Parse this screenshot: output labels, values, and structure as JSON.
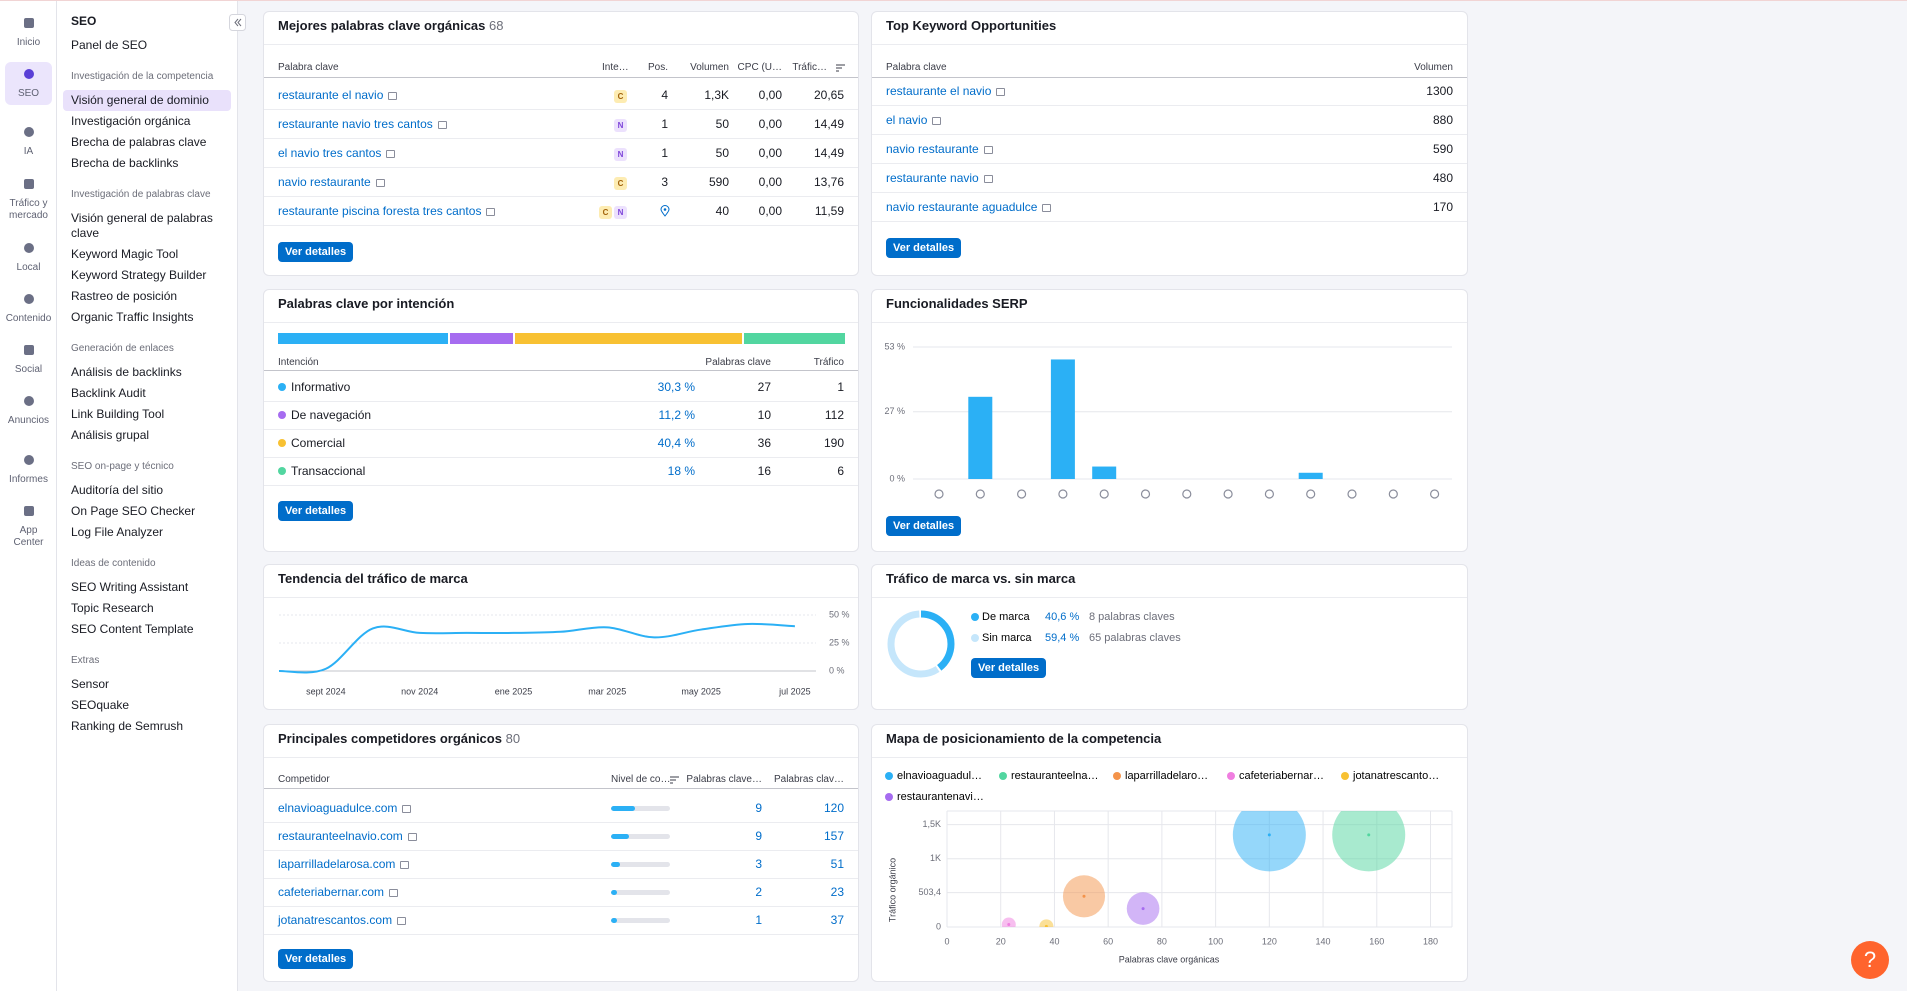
{
  "nav": {
    "items": [
      "Inicio",
      "SEO",
      "IA",
      "Tráfico y mercado",
      "Local",
      "Contenido",
      "Social",
      "Anuncios",
      "Informes",
      "App Center"
    ]
  },
  "sidebar": {
    "title": "SEO",
    "home": "Panel de SEO",
    "sections": [
      {
        "heading": "Investigación de la competencia",
        "items": [
          "Visión general de dominio",
          "Investigación orgánica",
          "Brecha de palabras clave",
          "Brecha de backlinks"
        ]
      },
      {
        "heading": "Investigación de palabras clave",
        "items": [
          "Visión general de palabras clave",
          "Keyword Magic Tool",
          "Keyword Strategy Builder",
          "Rastreo de posición",
          "Organic Traffic Insights"
        ]
      },
      {
        "heading": "Generación de enlaces",
        "items": [
          "Análisis de backlinks",
          "Backlink Audit",
          "Link Building Tool",
          "Análisis grupal"
        ]
      },
      {
        "heading": "SEO on-page y técnico",
        "items": [
          "Auditoría del sitio",
          "On Page SEO Checker",
          "Log File Analyzer"
        ]
      },
      {
        "heading": "Ideas de contenido",
        "items": [
          "SEO Writing Assistant",
          "Topic Research",
          "SEO Content Template"
        ]
      },
      {
        "heading": "Extras",
        "items": [
          "Sensor",
          "SEOquake",
          "Ranking de Semrush"
        ]
      }
    ]
  },
  "top_keywords": {
    "title": "Mejores palabras clave orgánicas",
    "count": "68",
    "columns": [
      "Palabra clave",
      "Inte…",
      "Pos.",
      "Volumen",
      "CPC (U…",
      "Tráfic…"
    ],
    "rows": [
      {
        "keyword": "restaurante el navio",
        "intents": [
          "C"
        ],
        "position": "4",
        "volume": "1,3K",
        "cpc": "0,00",
        "traffic": "20,65"
      },
      {
        "keyword": "restaurante navio tres cantos",
        "intents": [
          "N"
        ],
        "position": "1",
        "volume": "50",
        "cpc": "0,00",
        "traffic": "14,49"
      },
      {
        "keyword": "el navio tres cantos",
        "intents": [
          "N"
        ],
        "position": "1",
        "volume": "50",
        "cpc": "0,00",
        "traffic": "14,49"
      },
      {
        "keyword": "navio restaurante",
        "intents": [
          "C"
        ],
        "position": "3",
        "volume": "590",
        "cpc": "0,00",
        "traffic": "13,76"
      },
      {
        "keyword": "restaurante piscina foresta tres cantos",
        "intents": [
          "C",
          "N"
        ],
        "volume": "40",
        "cpc": "0,00",
        "traffic": "11,59"
      }
    ],
    "button": "Ver detalles"
  },
  "opportunities": {
    "title": "Top Keyword Opportunities",
    "columns": [
      "Palabra clave",
      "Volumen"
    ],
    "rows": [
      {
        "keyword": "restaurante el navio",
        "volume": "1300"
      },
      {
        "keyword": "el navio",
        "volume": "880"
      },
      {
        "keyword": "navio restaurante",
        "volume": "590"
      },
      {
        "keyword": "restaurante navio",
        "volume": "480"
      },
      {
        "keyword": "navio restaurante aguadulce",
        "volume": "170"
      }
    ],
    "button": "Ver detalles"
  },
  "intent": {
    "title": "Palabras clave por intención",
    "columns": [
      "Intención",
      "Palabras clave",
      "Tráfico"
    ],
    "rows": [
      {
        "name": "Informativo",
        "color": "#2bb0f5",
        "share": 30.3,
        "share_label": "30,3 %",
        "keywords": "27",
        "traffic": "1"
      },
      {
        "name": "De navegación",
        "color": "#a66cf0",
        "share": 11.2,
        "share_label": "11,2 %",
        "keywords": "10",
        "traffic": "112"
      },
      {
        "name": "Comercial",
        "color": "#f8c132",
        "share": 40.4,
        "share_label": "40,4 %",
        "keywords": "36",
        "traffic": "190"
      },
      {
        "name": "Transaccional",
        "color": "#52d6a0",
        "share": 18,
        "share_label": "18 %",
        "keywords": "16",
        "traffic": "6"
      }
    ],
    "button": "Ver detalles"
  },
  "competitors": {
    "title": "Principales competidores orgánicos",
    "count": "80",
    "columns": [
      "Competidor",
      "Nivel de co…",
      "Palabras clave…",
      "Palabras clav…"
    ],
    "rows": [
      {
        "domain": "elnavioaguadulce.com",
        "level": 41,
        "common": "9",
        "keywords": "120"
      },
      {
        "domain": "restauranteelnavio.com",
        "level": 31,
        "common": "9",
        "keywords": "157"
      },
      {
        "domain": "laparrilladelarosa.com",
        "level": 16,
        "common": "3",
        "keywords": "51"
      },
      {
        "domain": "cafeteriabernar.com",
        "level": 10,
        "common": "2",
        "keywords": "23"
      },
      {
        "domain": "jotanatrescantos.com",
        "level": 10,
        "common": "1",
        "keywords": "37"
      }
    ],
    "button": "Ver detalles"
  },
  "chart_data": [
    {
      "type": "bar",
      "title": "Funcionalidades SERP",
      "categories": [
        null,
        null,
        null,
        null,
        null,
        null,
        null,
        null,
        null,
        null,
        null,
        null,
        null
      ],
      "values": [
        0,
        33,
        0,
        48,
        5,
        0,
        0,
        0,
        0,
        2.5,
        0,
        0,
        0
      ],
      "color": "#2bb0f5",
      "ylim": [
        0,
        53
      ],
      "yticks": [
        {
          "value": 53,
          "label": "53 %"
        },
        {
          "value": 27,
          "label": "27 %"
        },
        {
          "value": 0,
          "label": "0 %"
        }
      ],
      "grid": true,
      "button": "Ver detalles"
    },
    {
      "type": "line",
      "title": "Tendencia del tráfico de marca",
      "categories": [
        null,
        "sept 2024",
        null,
        "nov 2024",
        null,
        "ene 2025",
        null,
        "mar 2025",
        null,
        "may 2025",
        null,
        "jul 2025"
      ],
      "values": [
        0,
        2,
        38,
        34,
        34,
        34,
        35,
        39,
        30,
        37,
        42,
        40
      ],
      "color": "#2bb0f5",
      "ylim": [
        0,
        50
      ],
      "yticks": [
        {
          "value": 50,
          "label": "50 %"
        },
        {
          "value": 25,
          "label": "25 %"
        },
        {
          "value": 0,
          "label": "0 %"
        }
      ],
      "grid": true
    },
    {
      "type": "pie",
      "title": "Tráfico de marca vs. sin marca",
      "categories": [
        "De marca",
        "Sin marca"
      ],
      "values": [
        40.6,
        59.4
      ],
      "value_labels": [
        "40,6 %",
        "59,4 %"
      ],
      "colors": [
        "#2bb0f5",
        "#c5e6fb"
      ],
      "keywords": [
        "8 palabras claves",
        "65 palabras claves"
      ],
      "button": "Ver detalles"
    },
    {
      "type": "scatter",
      "title": "Mapa de posicionamiento de la competencia",
      "xlabel": "Palabras clave orgánicas",
      "ylabel": "Tráfico orgánico",
      "xlim": [
        0,
        188
      ],
      "xticks": [
        0,
        20,
        40,
        60,
        80,
        100,
        120,
        140,
        160,
        180
      ],
      "ylim": [
        0,
        1700
      ],
      "yticks": [
        0,
        {
          "value": 503.4,
          "label": "503,4"
        },
        {
          "value": 1000,
          "label": "1K"
        },
        {
          "value": 1500,
          "label": "1,5K"
        }
      ],
      "grid": true,
      "series": [
        {
          "name": "elnavioaguadul…",
          "color": "#2bb0f5",
          "x": [
            120
          ],
          "values": [
            1350
          ]
        },
        {
          "name": "restauranteelna…",
          "color": "#52d6a0",
          "x": [
            157
          ],
          "values": [
            1350
          ]
        },
        {
          "name": "laparrilladelaro…",
          "color": "#f4934a",
          "x": [
            51
          ],
          "values": [
            450
          ]
        },
        {
          "name": "cafeteriabernar…",
          "color": "#f07ee0",
          "x": [
            23
          ],
          "values": [
            36
          ]
        },
        {
          "name": "jotanatrescanto…",
          "color": "#f8c132",
          "x": [
            37
          ],
          "values": [
            10
          ]
        },
        {
          "name": "restaurantenavi…",
          "color": "#a66cf0",
          "x": [
            73
          ],
          "values": [
            270
          ]
        }
      ]
    }
  ],
  "help": "?"
}
